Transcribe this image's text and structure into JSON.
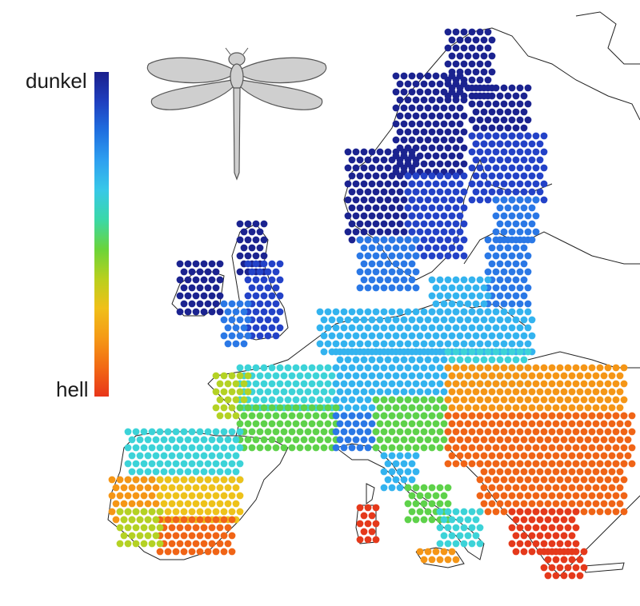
{
  "legend": {
    "label_dark": "dunkel",
    "label_light": "hell",
    "colors": [
      "#1a1f8c",
      "#1f3fbf",
      "#1f6fe0",
      "#2ea0f0",
      "#38c8e8",
      "#3ad8a8",
      "#6ad43a",
      "#b8d01e",
      "#f0c018",
      "#f59a16",
      "#f26a14",
      "#e8361a"
    ]
  },
  "icon": "dragonfly-icon",
  "map": {
    "subject": "Europe",
    "coastline_color": "#222222",
    "dot_colors": {
      "very_dark": "#1b2390",
      "dark": "#2342c8",
      "mid_blue": "#2a78e6",
      "light_blue": "#33b3ef",
      "cyan": "#3cd3d8",
      "green": "#5ed24a",
      "yellow_green": "#b4d224",
      "yellow": "#eec21a",
      "orange": "#f59616",
      "red_orange": "#f06416",
      "red": "#e5391b"
    }
  }
}
